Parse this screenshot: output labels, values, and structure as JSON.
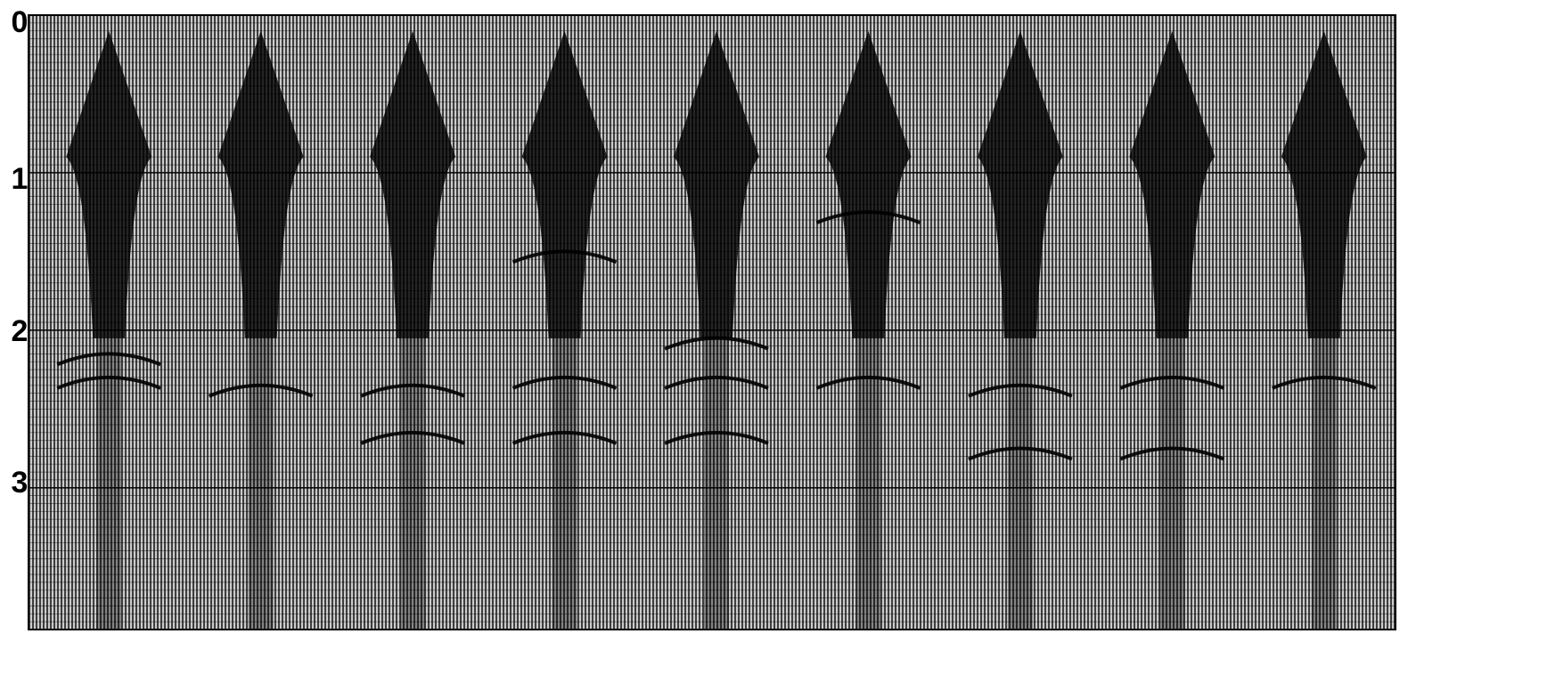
{
  "chart_data": {
    "type": "seismic-shot-gathers",
    "title": "",
    "xlabel": "",
    "ylabel": "",
    "y_axis": {
      "direction": "down",
      "ticks": [
        "0",
        "1",
        "2",
        "3"
      ],
      "range": [
        0,
        3.9
      ]
    },
    "gathers": [
      {
        "apex_time": 0.1,
        "reflection_times": [
          2.15,
          2.3
        ]
      },
      {
        "apex_time": 0.1,
        "reflection_times": [
          2.35
        ]
      },
      {
        "apex_time": 0.1,
        "reflection_times": [
          2.35,
          2.65
        ]
      },
      {
        "apex_time": 0.1,
        "reflection_times": [
          1.5,
          2.3,
          2.65
        ]
      },
      {
        "apex_time": 0.1,
        "reflection_times": [
          2.05,
          2.3,
          2.65
        ]
      },
      {
        "apex_time": 0.1,
        "reflection_times": [
          1.25,
          2.3
        ]
      },
      {
        "apex_time": 0.1,
        "reflection_times": [
          2.35,
          2.75
        ]
      },
      {
        "apex_time": 0.1,
        "reflection_times": [
          2.3,
          2.75
        ]
      },
      {
        "apex_time": 0.1,
        "reflection_times": [
          2.3
        ]
      }
    ],
    "grid": true,
    "legend": "none",
    "colors": {
      "background": "#ffffff",
      "traces": "#000000",
      "panel_tone": "#8c8c8c"
    }
  }
}
